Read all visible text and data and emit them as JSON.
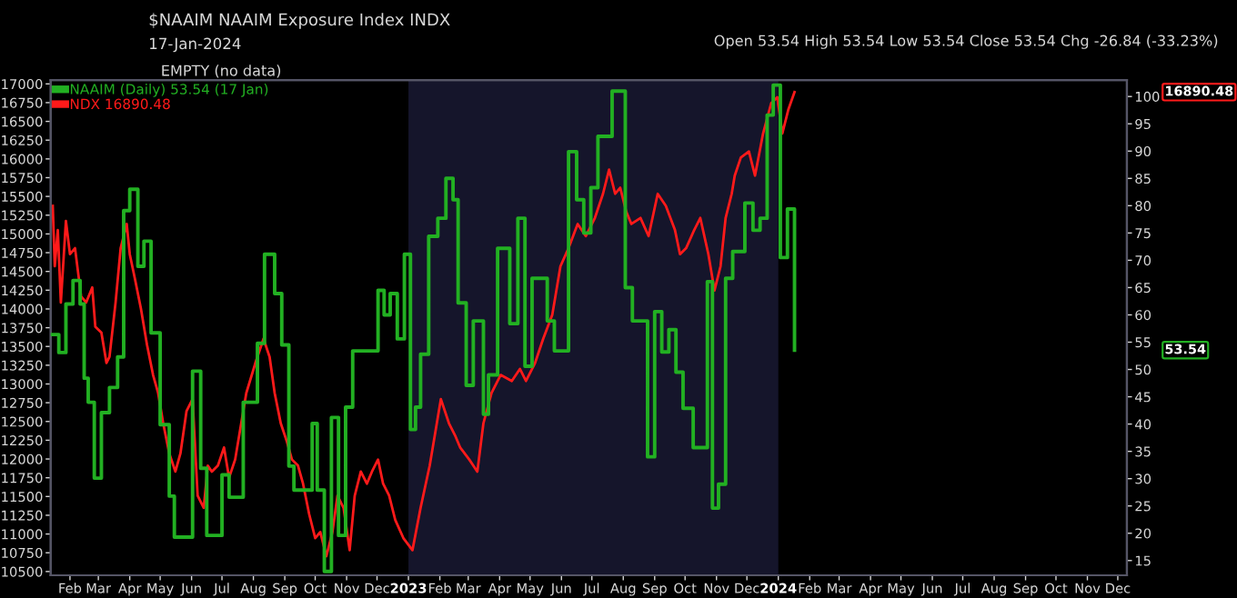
{
  "chart_data": {
    "type": "line",
    "title": "$NAAIM NAAIM Exposure Index INDX",
    "subtitle": "17-Jan-2024",
    "annotations": [
      "Open 53.54 High 53.54 Low 53.54 Close 53.54 Chg -26.84 (-33.23%)",
      "EMPTY (no data)",
      "16890.48",
      "53.54"
    ],
    "legend": "top left",
    "grid": false,
    "xlim": [
      "2022-01-13",
      "2024-12-10"
    ],
    "xticks": [
      {
        "value": "2022-02-01",
        "label": "Feb"
      },
      {
        "value": "2022-03-01",
        "label": "Mar"
      },
      {
        "value": "2022-04-01",
        "label": "Apr"
      },
      {
        "value": "2022-05-01",
        "label": "May"
      },
      {
        "value": "2022-06-01",
        "label": "Jun"
      },
      {
        "value": "2022-07-01",
        "label": "Jul"
      },
      {
        "value": "2022-08-01",
        "label": "Aug"
      },
      {
        "value": "2022-09-01",
        "label": "Sep"
      },
      {
        "value": "2022-10-01",
        "label": "Oct"
      },
      {
        "value": "2022-11-01",
        "label": "Nov"
      },
      {
        "value": "2022-12-01",
        "label": "Dec"
      },
      {
        "value": "2023-01-01",
        "label": "2023"
      },
      {
        "value": "2023-02-01",
        "label": "Feb"
      },
      {
        "value": "2023-03-01",
        "label": "Mar"
      },
      {
        "value": "2023-04-01",
        "label": "Apr"
      },
      {
        "value": "2023-05-01",
        "label": "May"
      },
      {
        "value": "2023-06-01",
        "label": "Jun"
      },
      {
        "value": "2023-07-01",
        "label": "Jul"
      },
      {
        "value": "2023-08-01",
        "label": "Aug"
      },
      {
        "value": "2023-09-01",
        "label": "Sep"
      },
      {
        "value": "2023-10-01",
        "label": "Oct"
      },
      {
        "value": "2023-11-01",
        "label": "Nov"
      },
      {
        "value": "2023-12-01",
        "label": "Dec"
      },
      {
        "value": "2024-01-01",
        "label": "2024"
      },
      {
        "value": "2024-02-01",
        "label": "Feb"
      },
      {
        "value": "2024-03-01",
        "label": "Mar"
      },
      {
        "value": "2024-04-01",
        "label": "Apr"
      },
      {
        "value": "2024-05-01",
        "label": "May"
      },
      {
        "value": "2024-06-01",
        "label": "Jun"
      },
      {
        "value": "2024-07-01",
        "label": "Jul"
      },
      {
        "value": "2024-08-01",
        "label": "Aug"
      },
      {
        "value": "2024-09-01",
        "label": "Sep"
      },
      {
        "value": "2024-10-01",
        "label": "Oct"
      },
      {
        "value": "2024-11-01",
        "label": "Nov"
      },
      {
        "value": "2024-12-01",
        "label": "Dec"
      }
    ],
    "ylim": [
      10450,
      17050
    ],
    "yticks": [
      10500,
      10750,
      11000,
      11250,
      11500,
      11750,
      12000,
      12250,
      12500,
      12750,
      13000,
      13250,
      13500,
      13750,
      14000,
      14250,
      14500,
      14750,
      15000,
      15250,
      15500,
      15750,
      16000,
      16250,
      16500,
      16750,
      17000
    ],
    "y2lim": [
      12.3,
      103
    ],
    "y2ticks": [
      15,
      20,
      25,
      30,
      35,
      40,
      45,
      50,
      55,
      60,
      65,
      70,
      75,
      80,
      85,
      90,
      95,
      100
    ],
    "bands": [
      {
        "axis": "x",
        "from": "2023-01-01",
        "to": "2024-01-01",
        "color": "#15152b"
      }
    ],
    "series": [
      {
        "name": "NAAIM (Daily) 53.54 (17 Jan)",
        "type": "step",
        "axis": "y2",
        "color": "#22b022",
        "x": [
          "2022-01-14",
          "2022-01-21",
          "2022-01-28",
          "2022-02-04",
          "2022-02-11",
          "2022-02-15",
          "2022-02-19",
          "2022-02-25",
          "2022-03-04",
          "2022-03-12",
          "2022-03-20",
          "2022-03-26",
          "2022-04-01",
          "2022-04-09",
          "2022-04-15",
          "2022-04-22",
          "2022-05-01",
          "2022-05-10",
          "2022-05-15",
          "2022-06-02",
          "2022-06-10",
          "2022-06-16",
          "2022-07-01",
          "2022-07-08",
          "2022-07-22",
          "2022-08-05",
          "2022-08-12",
          "2022-08-22",
          "2022-08-29",
          "2022-09-05",
          "2022-09-10",
          "2022-09-28",
          "2022-10-03",
          "2022-10-10",
          "2022-10-17",
          "2022-10-24",
          "2022-10-31",
          "2022-11-07",
          "2022-12-02",
          "2022-12-08",
          "2022-12-14",
          "2022-12-21",
          "2022-12-28",
          "2023-01-03",
          "2023-01-08",
          "2023-01-13",
          "2023-01-21",
          "2023-01-30",
          "2023-02-07",
          "2023-02-14",
          "2023-02-19",
          "2023-02-27",
          "2023-03-06",
          "2023-03-16",
          "2023-03-21",
          "2023-03-30",
          "2023-04-11",
          "2023-04-19",
          "2023-04-26",
          "2023-05-03",
          "2023-05-18",
          "2023-05-25",
          "2023-06-08",
          "2023-06-16",
          "2023-06-23",
          "2023-06-30",
          "2023-07-07",
          "2023-07-21",
          "2023-08-03",
          "2023-08-10",
          "2023-08-25",
          "2023-09-01",
          "2023-09-08",
          "2023-09-15",
          "2023-09-22",
          "2023-09-29",
          "2023-10-09",
          "2023-10-23",
          "2023-10-28",
          "2023-11-03",
          "2023-11-10",
          "2023-11-17",
          "2023-11-29",
          "2023-12-07",
          "2023-12-14",
          "2023-12-21",
          "2023-12-27",
          "2024-01-03",
          "2024-01-10",
          "2024-01-17"
        ],
        "values": [
          56.4,
          53.1,
          62.0,
          66.3,
          62.0,
          48.4,
          44.0,
          30.1,
          42.1,
          46.7,
          52.3,
          79.1,
          83.0,
          68.9,
          73.5,
          56.7,
          39.9,
          26.8,
          19.3,
          49.7,
          31.9,
          19.6,
          30.7,
          26.6,
          44.0,
          54.8,
          71.1,
          63.9,
          54.5,
          32.3,
          27.9,
          40.1,
          27.9,
          13.0,
          41.2,
          19.6,
          43.1,
          53.4,
          64.5,
          60.0,
          63.9,
          55.6,
          71.1,
          39.0,
          43.1,
          52.8,
          74.4,
          77.7,
          85.0,
          81.1,
          62.2,
          47.1,
          58.9,
          41.8,
          49.0,
          72.2,
          58.4,
          77.7,
          50.6,
          66.7,
          58.9,
          53.4,
          89.9,
          81.1,
          75.0,
          83.3,
          92.7,
          101.0,
          65.0,
          58.9,
          34.0,
          60.6,
          53.2,
          57.3,
          49.5,
          42.9,
          35.7,
          66.1,
          24.6,
          29.0,
          66.7,
          71.6,
          80.5,
          75.5,
          77.7,
          96.6,
          102.1,
          70.5,
          79.4,
          53.54
        ]
      },
      {
        "name": "NDX 16890.48",
        "color": "#ff1a1a",
        "x": [
          "2022-01-15",
          "2022-01-17",
          "2022-01-20",
          "2022-01-23",
          "2022-01-28",
          "2022-02-01",
          "2022-02-06",
          "2022-02-12",
          "2022-02-17",
          "2022-02-23",
          "2022-02-26",
          "2022-03-04",
          "2022-03-09",
          "2022-03-12",
          "2022-03-18",
          "2022-03-23",
          "2022-03-29",
          "2022-04-01",
          "2022-04-06",
          "2022-04-12",
          "2022-04-18",
          "2022-04-24",
          "2022-04-29",
          "2022-05-04",
          "2022-05-10",
          "2022-05-16",
          "2022-05-21",
          "2022-05-27",
          "2022-06-02",
          "2022-06-07",
          "2022-06-13",
          "2022-06-17",
          "2022-06-21",
          "2022-06-27",
          "2022-07-03",
          "2022-07-08",
          "2022-07-14",
          "2022-07-20",
          "2022-07-25",
          "2022-08-03",
          "2022-08-11",
          "2022-08-17",
          "2022-08-22",
          "2022-08-28",
          "2022-09-03",
          "2022-09-08",
          "2022-09-14",
          "2022-09-19",
          "2022-09-25",
          "2022-10-01",
          "2022-10-06",
          "2022-10-12",
          "2022-10-18",
          "2022-10-23",
          "2022-10-29",
          "2022-11-04",
          "2022-11-09",
          "2022-11-15",
          "2022-11-21",
          "2022-11-26",
          "2022-12-02",
          "2022-12-07",
          "2022-12-13",
          "2022-12-19",
          "2022-12-27",
          "2023-01-05",
          "2023-01-13",
          "2023-01-22",
          "2023-02-02",
          "2023-02-10",
          "2023-02-16",
          "2023-02-21",
          "2023-03-02",
          "2023-03-10",
          "2023-03-16",
          "2023-03-24",
          "2023-04-02",
          "2023-04-13",
          "2023-04-21",
          "2023-04-27",
          "2023-05-06",
          "2023-05-14",
          "2023-05-23",
          "2023-05-31",
          "2023-06-08",
          "2023-06-17",
          "2023-06-25",
          "2023-07-04",
          "2023-07-12",
          "2023-07-18",
          "2023-07-24",
          "2023-07-29",
          "2023-08-04",
          "2023-08-09",
          "2023-08-18",
          "2023-08-26",
          "2023-09-04",
          "2023-09-12",
          "2023-09-21",
          "2023-09-26",
          "2023-10-02",
          "2023-10-10",
          "2023-10-16",
          "2023-10-24",
          "2023-10-30",
          "2023-11-05",
          "2023-11-10",
          "2023-11-16",
          "2023-11-19",
          "2023-11-25",
          "2023-12-03",
          "2023-12-09",
          "2023-12-17",
          "2023-12-25",
          "2023-12-31",
          "2024-01-05",
          "2024-01-11",
          "2024-01-17"
        ],
        "values": [
          15374,
          14569,
          15052,
          14086,
          15173,
          14730,
          14810,
          14167,
          14086,
          14287,
          13764,
          13684,
          13281,
          13361,
          14086,
          14810,
          15133,
          14730,
          14408,
          14006,
          13523,
          13120,
          12879,
          12476,
          12074,
          11832,
          12074,
          12637,
          12798,
          11510,
          11349,
          11912,
          11832,
          11912,
          12154,
          11751,
          11993,
          12476,
          12879,
          13281,
          13603,
          13361,
          12879,
          12476,
          12235,
          11993,
          11912,
          11671,
          11268,
          10946,
          11027,
          10704,
          11027,
          11510,
          11349,
          10785,
          11510,
          11832,
          11671,
          11832,
          11993,
          11671,
          11510,
          11188,
          10946,
          10785,
          11349,
          11912,
          12798,
          12476,
          12315,
          12154,
          11993,
          11832,
          12476,
          12879,
          13120,
          13040,
          13200,
          13040,
          13281,
          13603,
          13925,
          14569,
          14810,
          15133,
          14971,
          15213,
          15535,
          15857,
          15535,
          15616,
          15294,
          15133,
          15213,
          14971,
          15535,
          15374,
          15052,
          14730,
          14810,
          15052,
          15213,
          14730,
          14247,
          14569,
          15213,
          15535,
          15777,
          16018,
          16099,
          15777,
          16340,
          16743,
          16823,
          16340,
          16662,
          16890.48
        ]
      }
    ]
  }
}
